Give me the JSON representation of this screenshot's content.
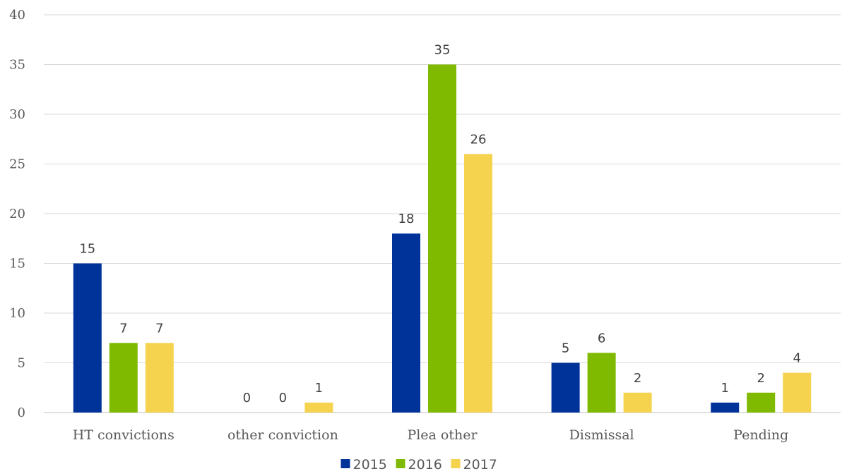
{
  "chart_data": {
    "type": "bar",
    "title": "",
    "xlabel": "",
    "ylabel": "",
    "categories": [
      "HT convictions",
      "other conviction",
      "Plea other",
      "Dismissal",
      "Pending"
    ],
    "series": [
      {
        "name": "2015",
        "color": "#003399",
        "values": [
          15,
          0,
          18,
          5,
          1
        ]
      },
      {
        "name": "2016",
        "color": "#7fba00",
        "values": [
          7,
          0,
          35,
          6,
          2
        ]
      },
      {
        "name": "2017",
        "color": "#f5d34f",
        "values": [
          7,
          1,
          26,
          2,
          4
        ]
      }
    ],
    "ylim": [
      0,
      40
    ],
    "yticks": [
      0,
      5,
      10,
      15,
      20,
      25,
      30,
      35,
      40
    ],
    "grid": true,
    "data_labels": true,
    "legend_position": "bottom"
  }
}
